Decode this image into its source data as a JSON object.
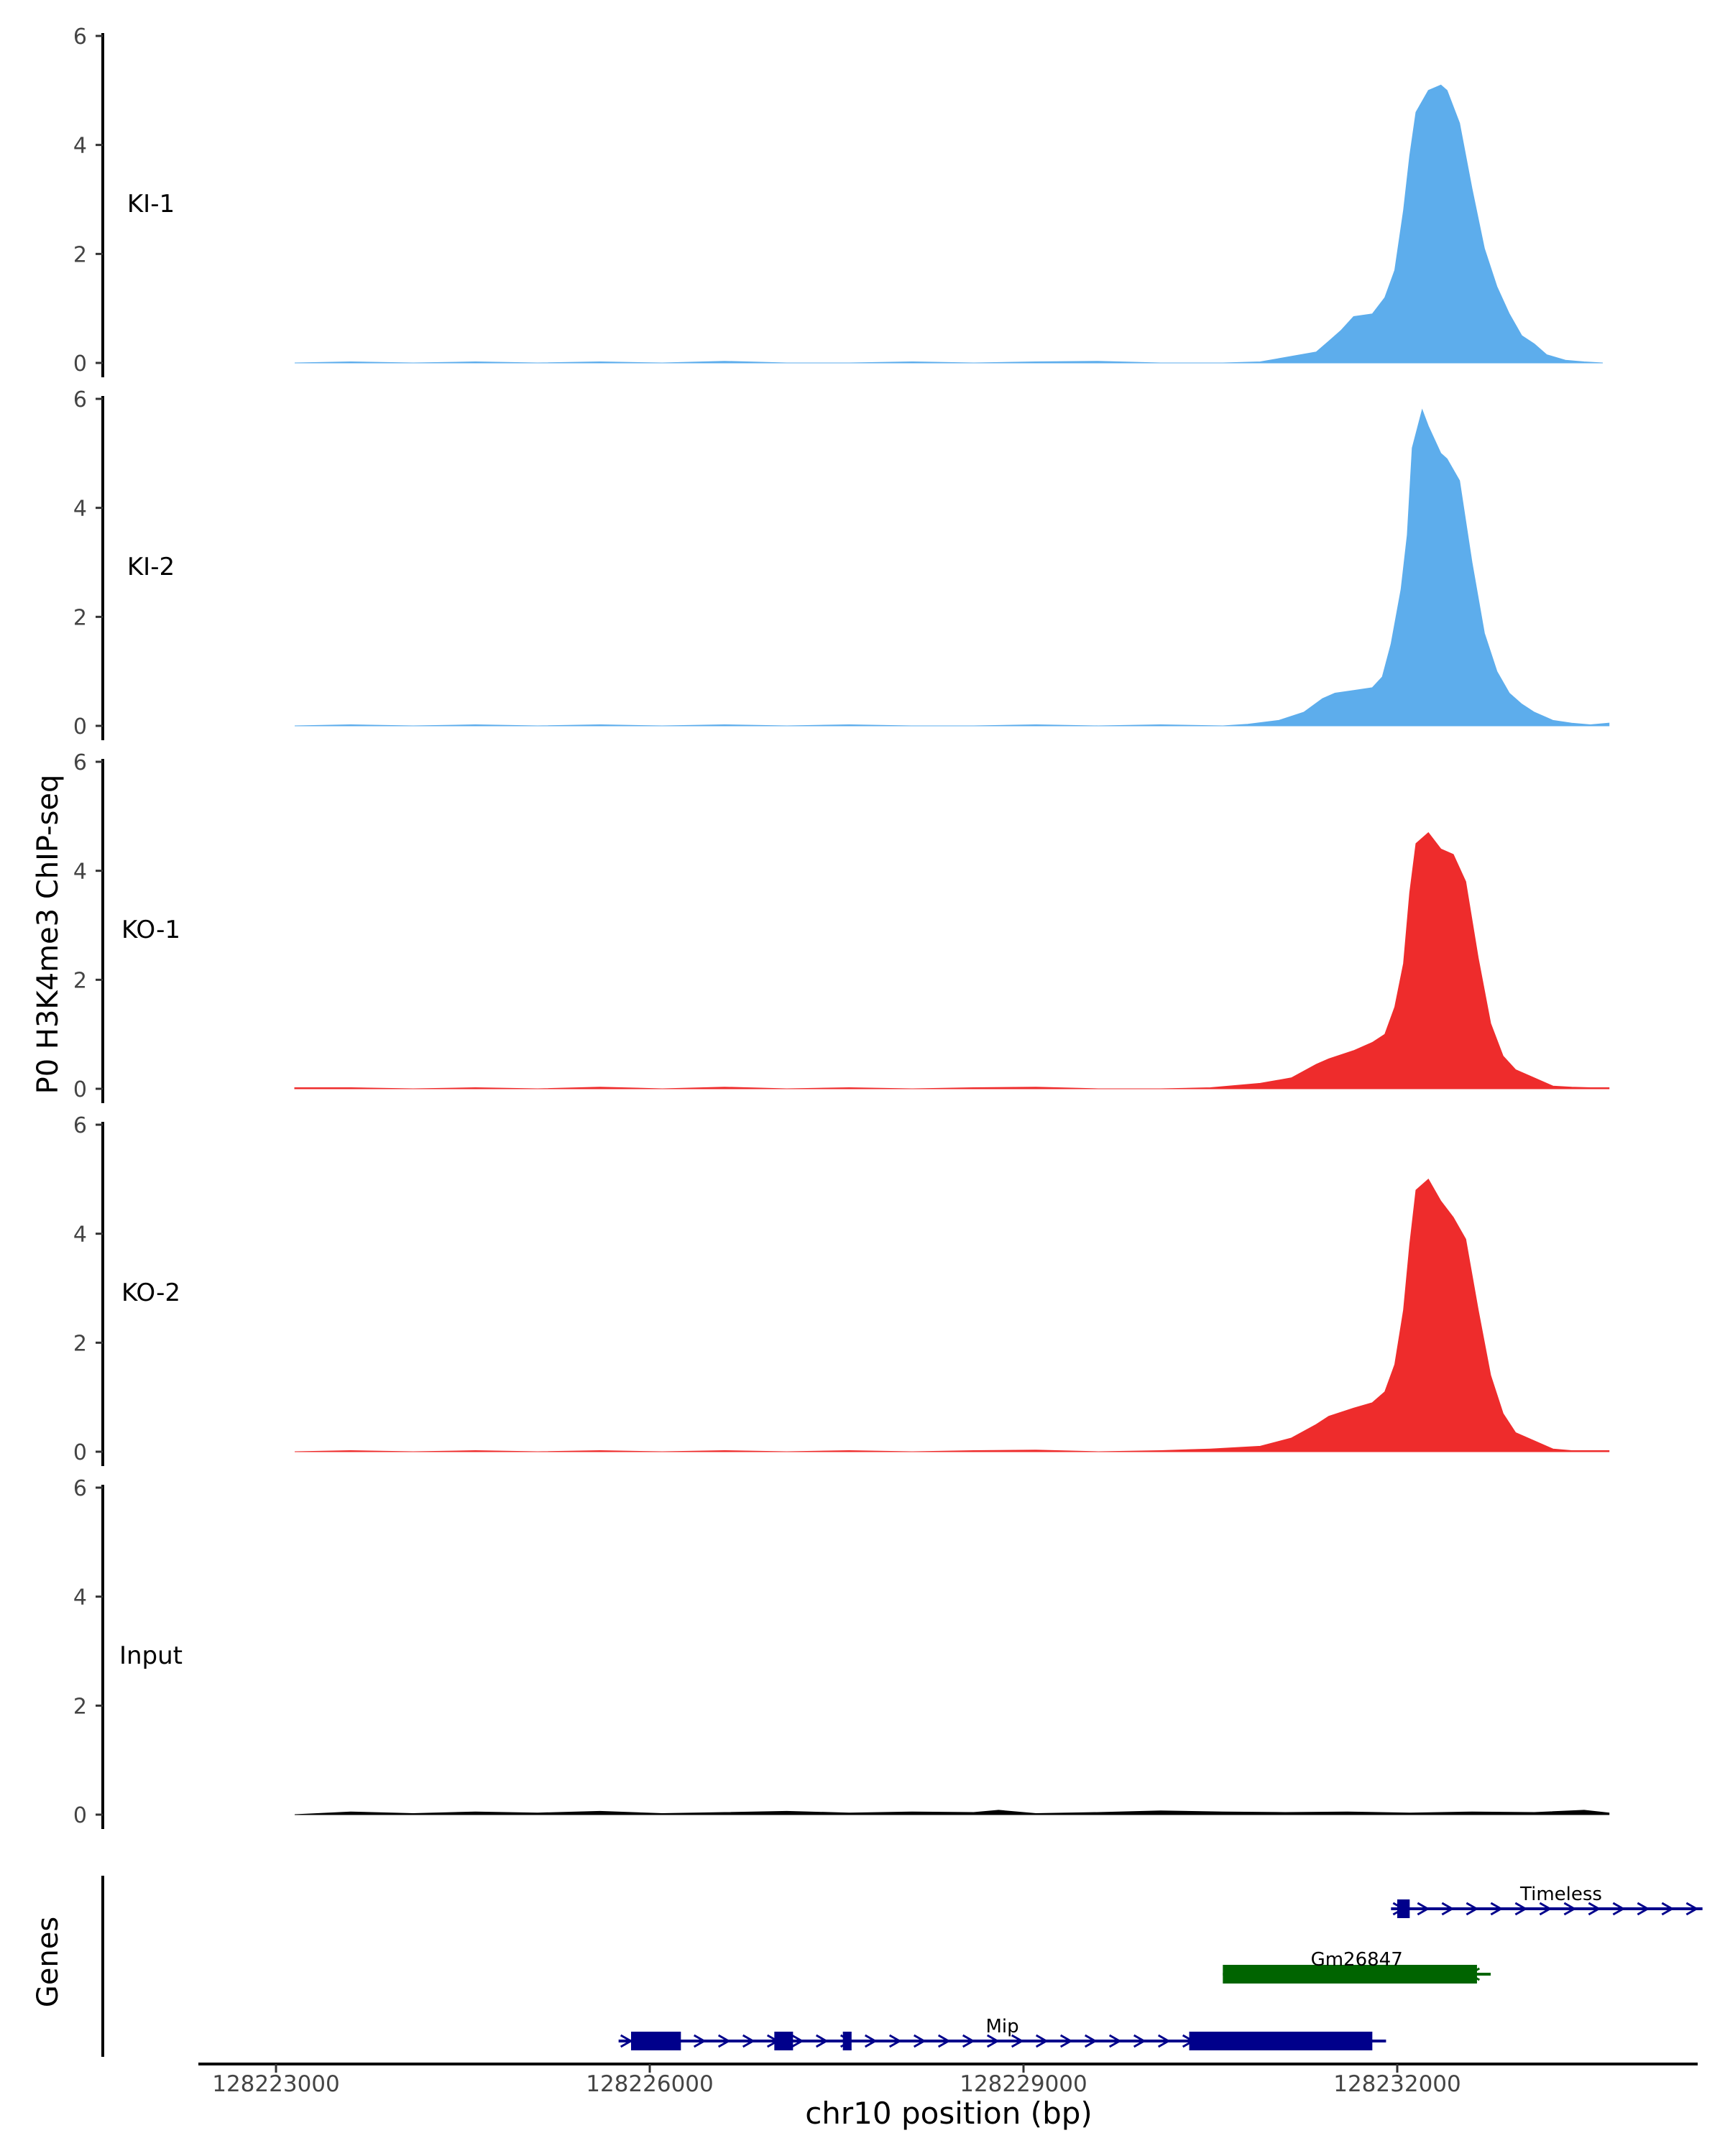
{
  "chart_data": {
    "type": "area",
    "ylabel": "P0 H3K4me3 ChIP-seq",
    "xlabel": "chr10 position (bp)",
    "genes_label": "Genes",
    "x_ticks": [
      {
        "value": 128223000,
        "label": "128223000"
      },
      {
        "value": 128226000,
        "label": "128226000"
      },
      {
        "value": 128229000,
        "label": "128229000"
      },
      {
        "value": 128232000,
        "label": "128232000"
      }
    ],
    "xlim": [
      128222400,
      128234400
    ],
    "ylim": [
      0,
      6
    ],
    "y_ticks": [
      0,
      2,
      4,
      6
    ],
    "tracks": [
      {
        "name": "KI-1",
        "color": "#5DADEC",
        "x": [
          128223150,
          128223600,
          128224100,
          128224600,
          128225100,
          128225600,
          128226100,
          128226600,
          128227100,
          128227600,
          128228100,
          128228600,
          128229100,
          128229600,
          128230100,
          128230600,
          128230900,
          128231100,
          128231350,
          128231450,
          128231550,
          128231650,
          128231800,
          128231900,
          128231980,
          128232050,
          128232100,
          128232150,
          128232250,
          128232350,
          128232400,
          128232500,
          128232600,
          128232700,
          128232800,
          128232900,
          128233000,
          128233100,
          128233200,
          128233350,
          128233500,
          128233650
        ],
        "values": [
          0,
          0.02,
          0,
          0.02,
          0,
          0.02,
          0,
          0.03,
          0,
          0,
          0.02,
          0,
          0.02,
          0.03,
          0,
          0,
          0.02,
          0.1,
          0.2,
          0.4,
          0.6,
          0.85,
          0.9,
          1.2,
          1.7,
          2.8,
          3.8,
          4.6,
          5.0,
          5.1,
          5.0,
          4.4,
          3.2,
          2.1,
          1.4,
          0.9,
          0.5,
          0.35,
          0.15,
          0.05,
          0.02,
          0
        ]
      },
      {
        "name": "KI-2",
        "color": "#5DADEC",
        "x": [
          128223150,
          128223600,
          128224100,
          128224600,
          128225100,
          128225600,
          128226100,
          128226600,
          128227100,
          128227600,
          128228100,
          128228600,
          128229100,
          128229600,
          128230100,
          128230600,
          128230800,
          128231050,
          128231250,
          128231400,
          128231500,
          128231650,
          128231800,
          128231880,
          128231950,
          128232030,
          128232080,
          128232120,
          128232200,
          128232250,
          128232350,
          128232400,
          128232500,
          128232600,
          128232700,
          128232800,
          128232900,
          128233000,
          128233100,
          128233250,
          128233400,
          128233550,
          128233700
        ],
        "values": [
          0,
          0.02,
          0,
          0.02,
          0,
          0.02,
          0,
          0.02,
          0,
          0.02,
          0,
          0,
          0.02,
          0,
          0.02,
          0,
          0.03,
          0.1,
          0.25,
          0.5,
          0.6,
          0.65,
          0.7,
          0.9,
          1.5,
          2.5,
          3.5,
          5.1,
          5.8,
          5.5,
          5.0,
          4.9,
          4.5,
          3.0,
          1.7,
          1.0,
          0.6,
          0.4,
          0.25,
          0.1,
          0.05,
          0.02,
          0.05
        ]
      },
      {
        "name": "KO-1",
        "color": "#EE2C2C",
        "x": [
          128223150,
          128223600,
          128224100,
          128224600,
          128225100,
          128225600,
          128226100,
          128226600,
          128227100,
          128227600,
          128228100,
          128228600,
          128229100,
          128229600,
          128230100,
          128230500,
          128230900,
          128231150,
          128231350,
          128231450,
          128231650,
          128231800,
          128231900,
          128231980,
          128232050,
          128232100,
          128232150,
          128232250,
          128232350,
          128232450,
          128232550,
          128232650,
          128232750,
          128232850,
          128232950,
          128233100,
          128233250,
          128233400,
          128233550,
          128233700
        ],
        "values": [
          0.02,
          0.02,
          0,
          0.02,
          0,
          0.03,
          0,
          0.03,
          0,
          0.02,
          0,
          0.02,
          0.03,
          0,
          0,
          0.02,
          0.1,
          0.2,
          0.45,
          0.55,
          0.7,
          0.85,
          1.0,
          1.5,
          2.3,
          3.6,
          4.5,
          4.7,
          4.4,
          4.3,
          3.8,
          2.4,
          1.2,
          0.6,
          0.35,
          0.2,
          0.05,
          0.03,
          0.02,
          0.02
        ]
      },
      {
        "name": "KO-2",
        "color": "#EE2C2C",
        "x": [
          128223150,
          128223600,
          128224100,
          128224600,
          128225100,
          128225600,
          128226100,
          128226600,
          128227100,
          128227600,
          128228100,
          128228600,
          128229100,
          128229600,
          128230100,
          128230500,
          128230900,
          128231150,
          128231350,
          128231450,
          128231650,
          128231800,
          128231900,
          128231980,
          128232050,
          128232100,
          128232150,
          128232250,
          128232350,
          128232450,
          128232550,
          128232650,
          128232750,
          128232850,
          128232950,
          128233100,
          128233250,
          128233400,
          128233550,
          128233700
        ],
        "values": [
          0,
          0.02,
          0,
          0.02,
          0,
          0.02,
          0,
          0.02,
          0,
          0.02,
          0,
          0.02,
          0.03,
          0,
          0.02,
          0.05,
          0.1,
          0.25,
          0.5,
          0.65,
          0.8,
          0.9,
          1.1,
          1.6,
          2.6,
          3.8,
          4.8,
          5.0,
          4.6,
          4.3,
          3.9,
          2.6,
          1.4,
          0.7,
          0.35,
          0.2,
          0.05,
          0.02,
          0.02,
          0.02
        ]
      },
      {
        "name": "Input",
        "color": "#000000",
        "x": [
          128223150,
          128223600,
          128224100,
          128224600,
          128225100,
          128225600,
          128226100,
          128226600,
          128227100,
          128227600,
          128228100,
          128228600,
          128228800,
          128229100,
          128229600,
          128230100,
          128230600,
          128231100,
          128231600,
          128232100,
          128232600,
          128233100,
          128233500,
          128233700
        ],
        "values": [
          0,
          0.05,
          0.02,
          0.05,
          0.03,
          0.06,
          0.02,
          0.04,
          0.06,
          0.03,
          0.05,
          0.04,
          0.08,
          0.02,
          0.04,
          0.07,
          0.05,
          0.04,
          0.05,
          0.03,
          0.05,
          0.04,
          0.08,
          0.03
        ]
      }
    ],
    "genes": [
      {
        "name": "Timeless",
        "strand": "+",
        "color": "#00008B",
        "row": 0,
        "start": 128231950,
        "end": 128234450,
        "exons": [
          [
            128232000,
            128232100
          ]
        ],
        "thick": [
          [
            128232000,
            128232100
          ]
        ]
      },
      {
        "name": "Gm26847",
        "strand": "-",
        "color": "#006400",
        "row": 1,
        "start": 128230600,
        "end": 128232750,
        "exons": [
          [
            128230600,
            128232640
          ]
        ],
        "thick": [
          [
            128230600,
            128232640
          ]
        ]
      },
      {
        "name": "Mip",
        "strand": "+",
        "color": "#00008B",
        "row": 2,
        "start": 128225750,
        "end": 128231910,
        "exons": [
          [
            128225850,
            128226250
          ],
          [
            128227000,
            128227150
          ],
          [
            128227550,
            128227620
          ],
          [
            128230330,
            128231800
          ]
        ],
        "thick": [
          [
            128225850,
            128226250
          ],
          [
            128227000,
            128227150
          ],
          [
            128227550,
            128227620
          ],
          [
            128230330,
            128231800
          ]
        ]
      }
    ]
  }
}
